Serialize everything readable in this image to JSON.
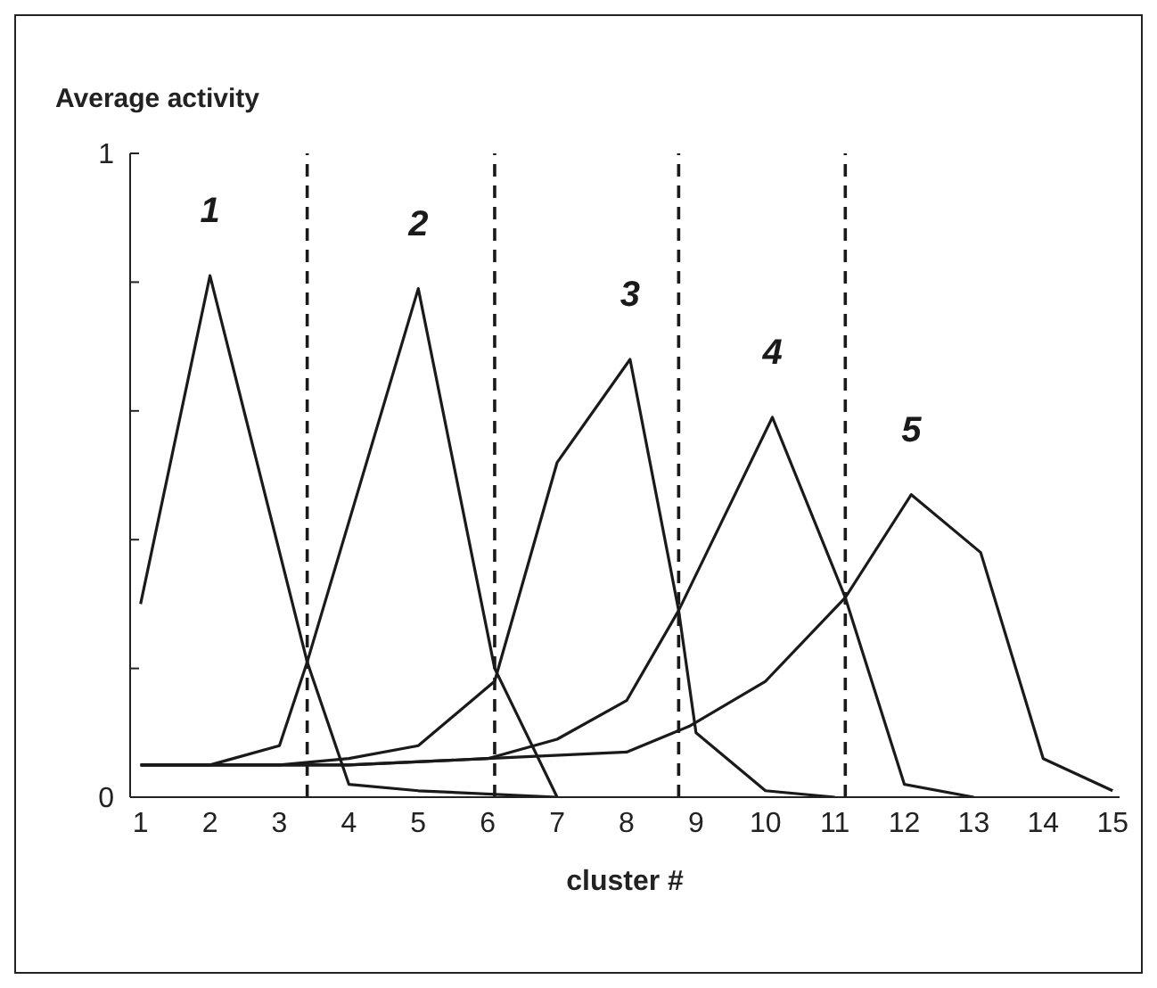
{
  "chart_data": {
    "type": "line",
    "ylabel": "Average activity",
    "xlabel": "cluster #",
    "xlim": [
      0.85,
      15.1
    ],
    "xticks": [
      1,
      2,
      3,
      4,
      5,
      6,
      7,
      8,
      9,
      10,
      11,
      12,
      13,
      14,
      15
    ],
    "ylim": [
      0,
      1
    ],
    "yticks": [
      0,
      {
        "value": 0.2,
        "label": null
      },
      {
        "value": 0.4,
        "label": null
      },
      {
        "value": 0.6,
        "label": null
      },
      {
        "value": 0.8,
        "label": null
      },
      1
    ],
    "grid": false,
    "legend": false,
    "marker": "none",
    "line_style": "solid",
    "series": [
      {
        "name": "1",
        "color": "#1a1a1a",
        "x": [
          1,
          2,
          3.4,
          4,
          5,
          7
        ],
        "values": [
          0.3,
          0.81,
          0.21,
          0.02,
          0.01,
          0
        ]
      },
      {
        "name": "2",
        "color": "#1a1a1a",
        "x": [
          1,
          2,
          3,
          3.4,
          5,
          6.1,
          7
        ],
        "values": [
          0.05,
          0.05,
          0.08,
          0.21,
          0.79,
          0.2,
          0
        ]
      },
      {
        "name": "3",
        "color": "#1a1a1a",
        "x": [
          1,
          2,
          3,
          4,
          5,
          6.1,
          7,
          8.05,
          8.75,
          9,
          10,
          11
        ],
        "values": [
          0.05,
          0.05,
          0.05,
          0.06,
          0.08,
          0.18,
          0.52,
          0.68,
          0.29,
          0.1,
          0.01,
          0
        ]
      },
      {
        "name": "4",
        "color": "#1a1a1a",
        "x": [
          1,
          4,
          6,
          7,
          8,
          8.75,
          10.1,
          11.15,
          12,
          13
        ],
        "values": [
          0.05,
          0.05,
          0.06,
          0.09,
          0.15,
          0.29,
          0.59,
          0.31,
          0.02,
          0
        ]
      },
      {
        "name": "5",
        "color": "#1a1a1a",
        "x": [
          1,
          4,
          6,
          8,
          8.9,
          10,
          11.15,
          12.1,
          13.1,
          14,
          15
        ],
        "values": [
          0.05,
          0.05,
          0.06,
          0.07,
          0.11,
          0.18,
          0.31,
          0.47,
          0.38,
          0.06,
          0.01
        ]
      }
    ],
    "ref_lines": [
      {
        "axis": "x",
        "value": 3.4,
        "line_style": "dashed",
        "color": "#1a1a1a"
      },
      {
        "axis": "x",
        "value": 6.1,
        "line_style": "dashed",
        "color": "#1a1a1a"
      },
      {
        "axis": "x",
        "value": 8.75,
        "line_style": "dashed",
        "color": "#1a1a1a"
      },
      {
        "axis": "x",
        "value": 11.15,
        "line_style": "dashed",
        "color": "#1a1a1a"
      }
    ]
  }
}
